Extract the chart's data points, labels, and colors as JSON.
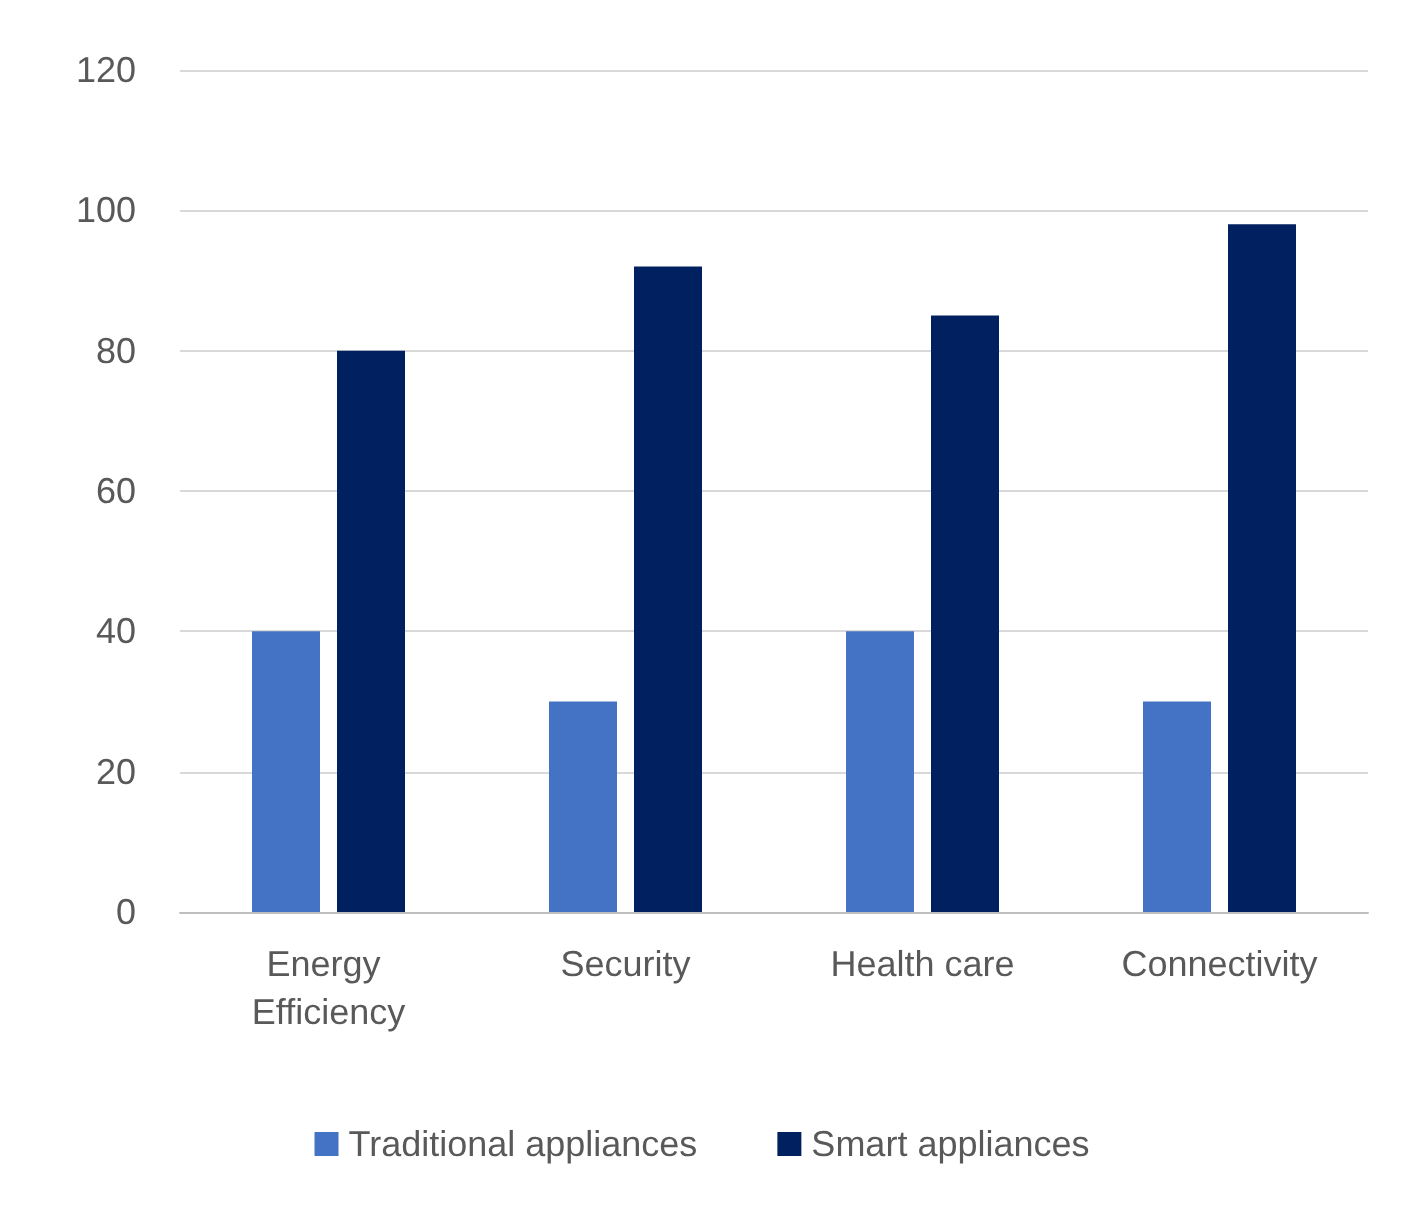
{
  "chart_data": {
    "type": "bar",
    "categories": [
      "Energy Efficiency",
      "Security",
      "Health care",
      "Connectivity"
    ],
    "series": [
      {
        "name": "Traditional appliances",
        "color": "#4472c4",
        "values": [
          40,
          30,
          40,
          30
        ]
      },
      {
        "name": "Smart appliances",
        "color": "#002060",
        "values": [
          80,
          92,
          85,
          98
        ]
      }
    ],
    "ylim": [
      0,
      120
    ],
    "yticks": [
      0,
      20,
      40,
      60,
      80,
      100,
      120
    ],
    "grid": "y",
    "legend": "bottom"
  }
}
